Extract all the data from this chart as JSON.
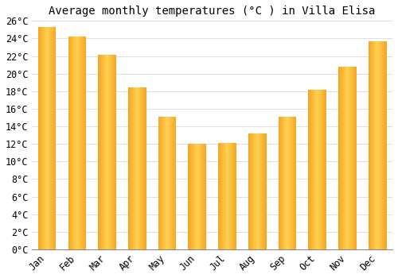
{
  "title": "Average monthly temperatures (°C ) in Villa Elisa",
  "months": [
    "Jan",
    "Feb",
    "Mar",
    "Apr",
    "May",
    "Jun",
    "Jul",
    "Aug",
    "Sep",
    "Oct",
    "Nov",
    "Dec"
  ],
  "values": [
    25.3,
    24.2,
    22.1,
    18.4,
    15.1,
    12.0,
    12.1,
    13.2,
    15.1,
    18.2,
    20.8,
    23.7
  ],
  "bar_color_center": "#FFD050",
  "bar_color_edge": "#F5A623",
  "ylim": [
    0,
    26
  ],
  "ytick_max": 26,
  "ytick_step": 2,
  "background_color": "#ffffff",
  "grid_color": "#dddddd",
  "title_fontsize": 10,
  "tick_fontsize": 8.5,
  "tick_font_family": "monospace",
  "bar_width": 0.6,
  "figsize": [
    5.0,
    3.5
  ],
  "dpi": 100
}
